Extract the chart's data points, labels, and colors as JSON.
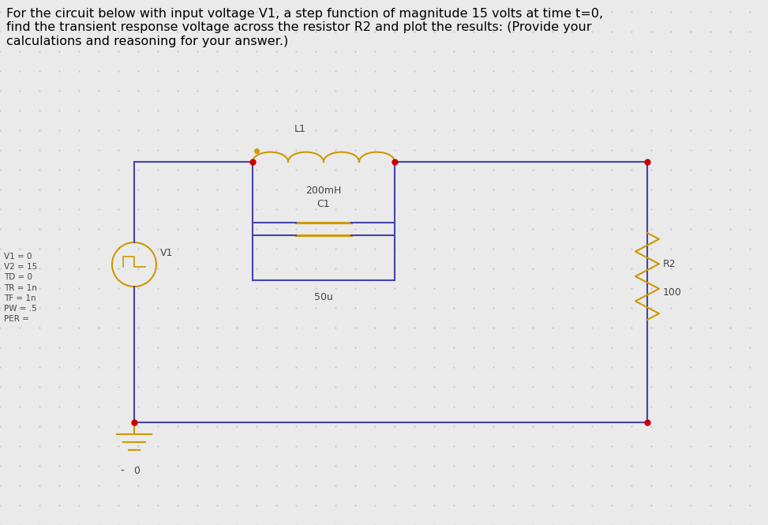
{
  "title_text": "For the circuit below with input voltage V1, a step function of magnitude 15 volts at time t=0,\nfind the transient response voltage across the resistor R2 and plot the results: (Provide your\ncalculations and reasoning for your answer.)",
  "title_fontsize": 11.5,
  "bg_color": "#eaeaea",
  "dot_color": "#cccccc",
  "wire_color": "#4444aa",
  "component_color": "#cc9900",
  "node_color": "#cc0000",
  "text_color": "#444444",
  "L1_label": "L1",
  "L1_value": "200mH",
  "C1_label": "C1",
  "C1_value": "50u",
  "R2_label": "R2",
  "R2_value": "100",
  "V1_label": "V1",
  "V1_params": "V1 = 0\nV2 = 15\nTD = 0\nTR = 1n\nTF = 1n\nPW = .5\nPER =",
  "ground_label": "0"
}
